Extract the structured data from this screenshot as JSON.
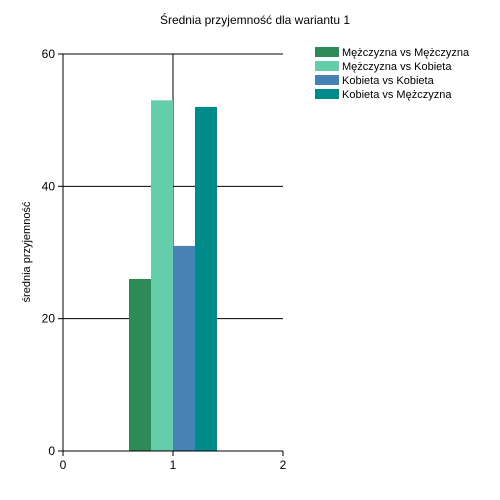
{
  "chart_data": {
    "type": "bar",
    "title": "Średnia przyjemność dla wariantu 1",
    "xlabel": "",
    "ylabel": "średnia przyjemność",
    "xlim": [
      0,
      2
    ],
    "ylim": [
      0,
      60
    ],
    "x_ticks": [
      0,
      1,
      2
    ],
    "y_ticks": [
      0,
      20,
      40,
      60
    ],
    "grid": true,
    "legend_position": "top-right",
    "categories": [
      "1"
    ],
    "series": [
      {
        "name": "Mężczyzna vs Mężczyzna",
        "values": [
          26
        ],
        "color": "#2e8b57"
      },
      {
        "name": "Mężczyzna vs Kobieta",
        "values": [
          53
        ],
        "color": "#66cdaa"
      },
      {
        "name": "Kobieta vs Kobieta",
        "values": [
          31
        ],
        "color": "#4682b4"
      },
      {
        "name": "Kobieta vs Mężczyzna",
        "values": [
          52
        ],
        "color": "#008b8b"
      }
    ]
  }
}
